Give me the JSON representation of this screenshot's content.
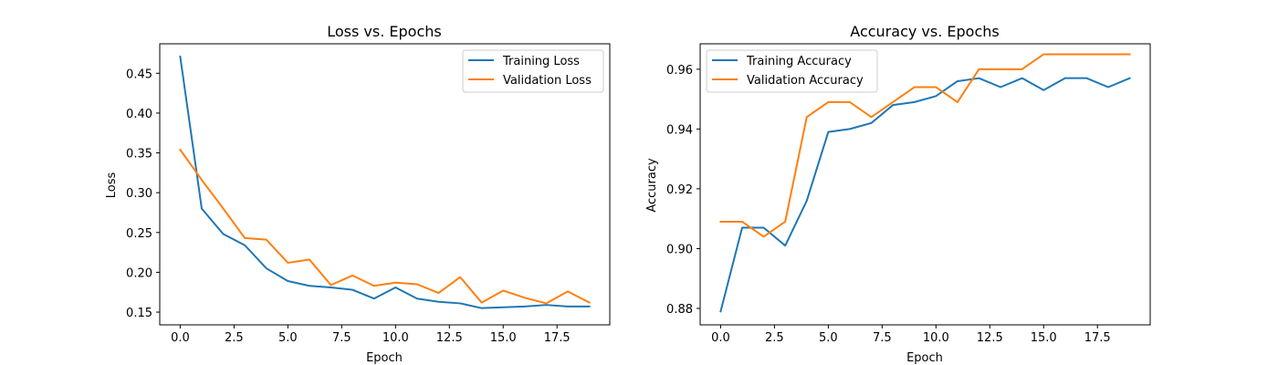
{
  "chart_data": [
    {
      "type": "line",
      "title": "Loss vs. Epochs",
      "xlabel": "Epoch",
      "ylabel": "Loss",
      "xlim": [
        -0.95,
        19.95
      ],
      "ylim": [
        0.134,
        0.487
      ],
      "xticks": [
        0,
        2.5,
        5,
        7.5,
        10,
        12.5,
        15,
        17.5
      ],
      "xtick_labels": [
        "0.0",
        "2.5",
        "5.0",
        "7.5",
        "10.0",
        "12.5",
        "15.0",
        "17.5"
      ],
      "yticks": [
        0.15,
        0.2,
        0.25,
        0.3,
        0.35,
        0.4,
        0.45
      ],
      "ytick_labels": [
        "0.15",
        "0.20",
        "0.25",
        "0.30",
        "0.35",
        "0.40",
        "0.45"
      ],
      "grid": false,
      "legend": "top-right",
      "x": [
        0,
        1,
        2,
        3,
        4,
        5,
        6,
        7,
        8,
        9,
        10,
        11,
        12,
        13,
        14,
        15,
        16,
        17,
        18,
        19
      ],
      "series": [
        {
          "name": "Training Loss",
          "color": "#1f77b4",
          "values": [
            0.471,
            0.28,
            0.248,
            0.234,
            0.205,
            0.189,
            0.183,
            0.181,
            0.178,
            0.167,
            0.181,
            0.167,
            0.163,
            0.161,
            0.155,
            0.156,
            0.157,
            0.159,
            0.157,
            0.157
          ]
        },
        {
          "name": "Validation Loss",
          "color": "#ff7f0e",
          "values": [
            0.354,
            0.316,
            0.28,
            0.243,
            0.241,
            0.212,
            0.216,
            0.184,
            0.196,
            0.183,
            0.187,
            0.185,
            0.174,
            0.194,
            0.162,
            0.177,
            0.168,
            0.161,
            0.176,
            0.162
          ]
        }
      ]
    },
    {
      "type": "line",
      "title": "Accuracy vs. Epochs",
      "xlabel": "Epoch",
      "ylabel": "Accuracy",
      "xlim": [
        -0.95,
        19.95
      ],
      "ylim": [
        0.8745,
        0.9685
      ],
      "xticks": [
        0,
        2.5,
        5,
        7.5,
        10,
        12.5,
        15,
        17.5
      ],
      "xtick_labels": [
        "0.0",
        "2.5",
        "5.0",
        "7.5",
        "10.0",
        "12.5",
        "15.0",
        "17.5"
      ],
      "yticks": [
        0.88,
        0.9,
        0.92,
        0.94,
        0.96
      ],
      "ytick_labels": [
        "0.88",
        "0.90",
        "0.92",
        "0.94",
        "0.96"
      ],
      "grid": false,
      "legend": "top-left",
      "x": [
        0,
        1,
        2,
        3,
        4,
        5,
        6,
        7,
        8,
        9,
        10,
        11,
        12,
        13,
        14,
        15,
        16,
        17,
        18,
        19
      ],
      "series": [
        {
          "name": "Training Accuracy",
          "color": "#1f77b4",
          "values": [
            0.879,
            0.907,
            0.907,
            0.901,
            0.916,
            0.939,
            0.94,
            0.942,
            0.948,
            0.949,
            0.951,
            0.956,
            0.957,
            0.954,
            0.957,
            0.953,
            0.957,
            0.957,
            0.954,
            0.957
          ]
        },
        {
          "name": "Validation Accuracy",
          "color": "#ff7f0e",
          "values": [
            0.909,
            0.909,
            0.904,
            0.909,
            0.944,
            0.949,
            0.949,
            0.944,
            0.949,
            0.954,
            0.954,
            0.949,
            0.96,
            0.96,
            0.96,
            0.965,
            0.965,
            0.965,
            0.965,
            0.965
          ]
        }
      ]
    }
  ]
}
